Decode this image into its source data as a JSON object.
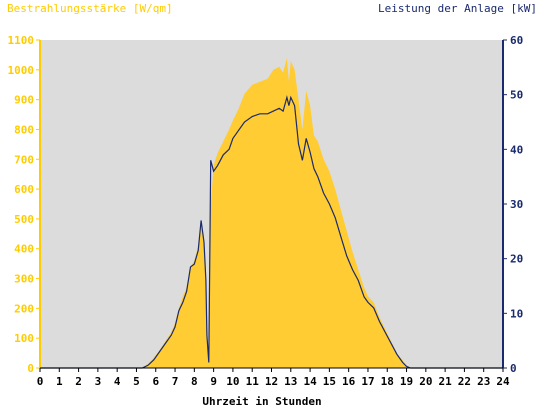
{
  "chart_data": {
    "type": "area",
    "left_axis_label": "Bestrahlungsstärke [W/qm]",
    "right_axis_label": "Leistung der Anlage [kW]",
    "xlabel": "Uhrzeit in Stunden",
    "x_range": [
      0,
      24
    ],
    "y_left_range": [
      0,
      1100
    ],
    "y_right_range": [
      0,
      60
    ],
    "x_ticks": [
      "0",
      "1",
      "2",
      "3",
      "4",
      "5",
      "6",
      "7",
      "8",
      "9",
      "10",
      "11",
      "12",
      "13",
      "14",
      "15",
      "16",
      "17",
      "18",
      "19",
      "20",
      "21",
      "22",
      "23",
      "24"
    ],
    "y_left_ticks": [
      "0",
      "100",
      "200",
      "300",
      "400",
      "500",
      "600",
      "700",
      "800",
      "900",
      "1000",
      "1100"
    ],
    "y_right_ticks": [
      "0",
      "10",
      "20",
      "30",
      "40",
      "50",
      "60"
    ],
    "colors": {
      "plot_background": "#dcdcdc",
      "irradiance_fill": "#ffcc33",
      "power_line": "#1a2a6c",
      "left_axis": "#ffcc00",
      "right_axis": "#1a2a6c"
    },
    "series": [
      {
        "name": "Bestrahlungsstärke [W/qm]",
        "axis": "left",
        "x": [
          0,
          5.3,
          5.6,
          5.9,
          6.2,
          6.5,
          6.8,
          7.0,
          7.2,
          7.4,
          7.6,
          7.8,
          8.0,
          8.2,
          8.35,
          8.5,
          8.6,
          8.65,
          8.75,
          8.85,
          9.0,
          9.2,
          9.5,
          9.8,
          10.0,
          10.3,
          10.6,
          11.0,
          11.4,
          11.8,
          12.1,
          12.4,
          12.6,
          12.8,
          12.9,
          13.0,
          13.2,
          13.4,
          13.6,
          13.8,
          14.0,
          14.2,
          14.4,
          14.7,
          15.0,
          15.3,
          15.6,
          15.9,
          16.2,
          16.5,
          16.8,
          17.0,
          17.3,
          17.6,
          17.9,
          18.2,
          18.5,
          18.8,
          19.0,
          19.2,
          24
        ],
        "y": [
          0,
          0,
          15,
          35,
          60,
          90,
          120,
          150,
          200,
          240,
          270,
          340,
          360,
          410,
          500,
          420,
          300,
          120,
          20,
          540,
          680,
          720,
          760,
          800,
          830,
          870,
          920,
          950,
          960,
          970,
          1000,
          1010,
          990,
          1040,
          960,
          1030,
          1000,
          900,
          800,
          930,
          880,
          780,
          760,
          700,
          660,
          600,
          530,
          460,
          390,
          330,
          270,
          240,
          220,
          170,
          130,
          90,
          50,
          25,
          10,
          0,
          0
        ]
      },
      {
        "name": "Leistung der Anlage [kW]",
        "axis": "right",
        "x": [
          0,
          5.3,
          5.6,
          5.9,
          6.2,
          6.5,
          6.8,
          7.0,
          7.2,
          7.4,
          7.6,
          7.8,
          8.0,
          8.2,
          8.35,
          8.5,
          8.6,
          8.65,
          8.75,
          8.85,
          9.0,
          9.2,
          9.5,
          9.8,
          10.0,
          10.3,
          10.6,
          11.0,
          11.4,
          11.8,
          12.1,
          12.4,
          12.6,
          12.8,
          12.9,
          13.0,
          13.2,
          13.4,
          13.6,
          13.8,
          14.0,
          14.2,
          14.4,
          14.7,
          15.0,
          15.3,
          15.6,
          15.9,
          16.2,
          16.5,
          16.8,
          17.0,
          17.3,
          17.6,
          17.9,
          18.2,
          18.5,
          18.8,
          19.0,
          19.2,
          24
        ],
        "y": [
          0,
          0,
          0.5,
          1.5,
          3,
          4.5,
          6,
          7.5,
          10.5,
          12,
          14,
          18.5,
          19,
          21.5,
          27,
          23,
          16,
          6,
          1,
          38,
          36,
          37,
          39,
          40,
          42,
          43.5,
          45,
          46,
          46.5,
          46.5,
          47,
          47.5,
          47,
          49.5,
          48,
          49.5,
          48,
          41,
          38,
          42,
          39.5,
          36.5,
          35,
          32,
          30,
          27.5,
          24,
          20.5,
          18,
          16,
          13,
          12,
          11,
          8.5,
          6.5,
          4.5,
          2.5,
          1,
          0.3,
          0,
          0
        ]
      }
    ]
  }
}
